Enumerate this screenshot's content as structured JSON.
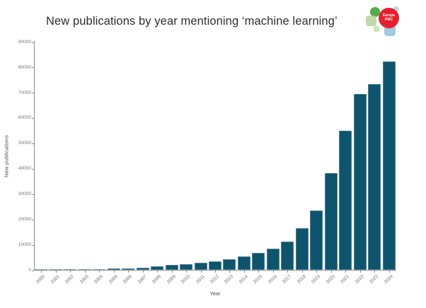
{
  "logo": {
    "name": "Europe PMC logo",
    "line1": "Europe",
    "line2": "PMC"
  },
  "chart_data": {
    "type": "bar",
    "title": "New publications by year mentioning ‘machine learning’",
    "xlabel": "Year",
    "ylabel": "New publications",
    "ylim": [
      0,
      90000
    ],
    "y_ticks": [
      0,
      10000,
      20000,
      30000,
      40000,
      50000,
      60000,
      70000,
      80000,
      90000
    ],
    "grid": false,
    "legend": "none",
    "bar_color": "#0e546d",
    "axis_color": "#8a8a8a",
    "categories": [
      "2000",
      "2001",
      "2002",
      "2003",
      "2004",
      "2005",
      "2006",
      "2007",
      "2008",
      "2009",
      "2010",
      "2011",
      "2012",
      "2013",
      "2014",
      "2015",
      "2016",
      "2017",
      "2018",
      "2019",
      "2020",
      "2021",
      "2022",
      "2023",
      "2024"
    ],
    "values": [
      130,
      160,
      200,
      270,
      370,
      480,
      650,
      870,
      1400,
      1850,
      2300,
      2800,
      3450,
      4300,
      5400,
      6800,
      8400,
      11200,
      16400,
      23300,
      38200,
      54800,
      69500,
      73400,
      82100
    ]
  }
}
